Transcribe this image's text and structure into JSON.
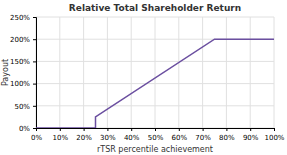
{
  "chart_data": {
    "type": "line",
    "title": "Relative Total Shareholder Return",
    "xlabel": "rTSR percentile achievement",
    "ylabel": "Payout",
    "x": [
      0,
      0.25,
      0.25,
      0.75,
      0.75,
      1.0
    ],
    "values": [
      0,
      0,
      0.25,
      2.0,
      2.0,
      2.0
    ],
    "color": "#6B4FA0",
    "xlim": [
      0,
      1.0
    ],
    "ylim": [
      0,
      2.5
    ],
    "xticks": [
      {
        "value": 0,
        "label": "0%"
      },
      {
        "value": 0.1,
        "label": "10%"
      },
      {
        "value": 0.2,
        "label": "20%"
      },
      {
        "value": 0.3,
        "label": "30%"
      },
      {
        "value": 0.4,
        "label": "40%"
      },
      {
        "value": 0.5,
        "label": "50%"
      },
      {
        "value": 0.6,
        "label": "60%"
      },
      {
        "value": 0.7,
        "label": "70%"
      },
      {
        "value": 0.8,
        "label": "80%"
      },
      {
        "value": 0.9,
        "label": "90%"
      },
      {
        "value": 1.0,
        "label": "100%"
      }
    ],
    "yticks": [
      {
        "value": 0,
        "label": "0%"
      },
      {
        "value": 0.5,
        "label": "50%"
      },
      {
        "value": 1.0,
        "label": "100%"
      },
      {
        "value": 1.5,
        "label": "150%"
      },
      {
        "value": 2.0,
        "label": "200%"
      },
      {
        "value": 2.5,
        "label": "250%"
      }
    ],
    "grid": true
  }
}
